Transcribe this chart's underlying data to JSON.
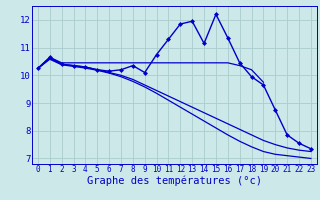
{
  "background_color": "#cce8e8",
  "grid_color": "#aacccc",
  "line_color": "#0000cc",
  "xlabel": "Graphe des températures (°c)",
  "xlabel_fontsize": 7.5,
  "ylim": [
    6.8,
    12.5
  ],
  "xlim": [
    -0.5,
    23.5
  ],
  "yticks": [
    7,
    8,
    9,
    10,
    11,
    12
  ],
  "xtick_labels": [
    "0",
    "1",
    "2",
    "3",
    "4",
    "5",
    "6",
    "7",
    "8",
    "9",
    "10",
    "11",
    "12",
    "13",
    "14",
    "15",
    "16",
    "17",
    "18",
    "19",
    "20",
    "21",
    "22",
    "23"
  ],
  "series": [
    {
      "x": [
        0,
        1,
        2,
        3,
        4,
        5,
        6,
        7,
        8,
        9,
        10,
        11,
        12,
        13,
        14,
        15,
        16,
        17,
        18,
        19,
        20,
        21,
        22,
        23
      ],
      "y": [
        10.25,
        10.65,
        10.4,
        10.35,
        10.3,
        10.2,
        10.15,
        10.2,
        10.35,
        10.1,
        10.75,
        11.3,
        11.85,
        11.95,
        11.15,
        12.2,
        11.35,
        10.45,
        9.95,
        9.65,
        8.75,
        7.85,
        7.55,
        7.35
      ],
      "marker": "D",
      "markersize": 2.0,
      "linewidth": 1.0
    },
    {
      "x": [
        0,
        1,
        2,
        3,
        4,
        5,
        6,
        7,
        8,
        9,
        10,
        11,
        12,
        13,
        14,
        15,
        16,
        17,
        18,
        19
      ],
      "y": [
        10.25,
        10.65,
        10.45,
        10.45,
        10.45,
        10.45,
        10.45,
        10.45,
        10.45,
        10.45,
        10.45,
        10.45,
        10.45,
        10.45,
        10.45,
        10.45,
        10.45,
        10.35,
        10.2,
        9.75
      ],
      "marker": null,
      "markersize": 0,
      "linewidth": 0.9
    },
    {
      "x": [
        0,
        1,
        2,
        3,
        4,
        5,
        6,
        7,
        8,
        9,
        10,
        11,
        12,
        13,
        14,
        15,
        16,
        17,
        18,
        19,
        20,
        21,
        22,
        23
      ],
      "y": [
        10.25,
        10.6,
        10.4,
        10.35,
        10.3,
        10.2,
        10.1,
        10.0,
        9.85,
        9.65,
        9.45,
        9.25,
        9.05,
        8.85,
        8.65,
        8.45,
        8.25,
        8.05,
        7.85,
        7.65,
        7.5,
        7.38,
        7.3,
        7.25
      ],
      "marker": null,
      "markersize": 0,
      "linewidth": 0.9
    },
    {
      "x": [
        0,
        1,
        2,
        3,
        4,
        5,
        6,
        7,
        8,
        9,
        10,
        11,
        12,
        13,
        14,
        15,
        16,
        17,
        18,
        19,
        20,
        21,
        22,
        23
      ],
      "y": [
        10.25,
        10.58,
        10.38,
        10.32,
        10.26,
        10.18,
        10.08,
        9.95,
        9.78,
        9.58,
        9.35,
        9.1,
        8.85,
        8.6,
        8.35,
        8.1,
        7.85,
        7.62,
        7.42,
        7.25,
        7.15,
        7.1,
        7.05,
        7.0
      ],
      "marker": null,
      "markersize": 0,
      "linewidth": 0.9
    }
  ]
}
